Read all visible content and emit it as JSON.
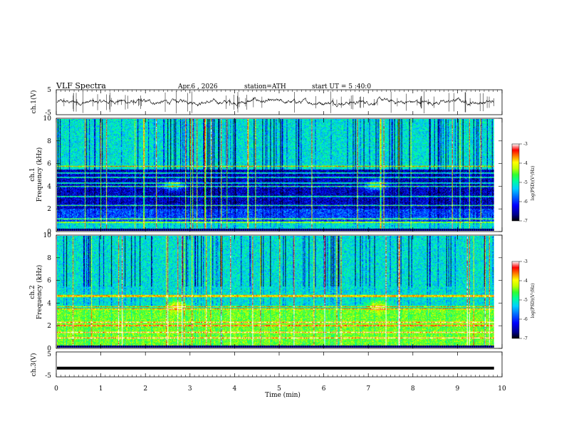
{
  "header": {
    "title": "VLF  Spectra",
    "date": "Apr.6  , 2026",
    "station": "station=ATH",
    "start": "start  UT  =   5  :40:0"
  },
  "chart_data": {
    "type": "heatmap",
    "x_axis": {
      "label": "Time  (min)",
      "range": [
        0,
        10
      ],
      "ticks": [
        "0",
        "1",
        "2",
        "3",
        "4",
        "5",
        "6",
        "7",
        "8",
        "9",
        "10"
      ],
      "data_end": 9.82
    },
    "panels": [
      {
        "id": "ch1-waveform",
        "type": "line",
        "ylabel": "ch.1(V)",
        "ylim": [
          -5,
          5
        ],
        "yticks": [
          "5",
          "-5"
        ],
        "baseline": 0,
        "bursts": [
          1.4,
          2.95,
          4.5,
          7.3,
          9.0
        ]
      },
      {
        "id": "ch1-spectrogram",
        "type": "heatmap",
        "ylabel": "ch.1\nFrequency  (kHz)",
        "ylim": [
          0,
          10
        ],
        "yticks": [
          "0",
          "2",
          "4",
          "6",
          "8",
          "10"
        ],
        "background_bands_khz": [
          [
            0,
            0.8,
            "cyan"
          ],
          [
            0.8,
            2.0,
            "blue"
          ],
          [
            2.0,
            5.5,
            "darkblue"
          ],
          [
            5.5,
            10,
            "cyan"
          ]
        ],
        "tones_khz": [
          0.8,
          1.1,
          2.3,
          3.1,
          4.0,
          4.3,
          4.8,
          5.2,
          5.8
        ],
        "features": [
          {
            "t": 2.6,
            "f": 4.1
          },
          {
            "t": 7.15,
            "f": 4.1
          }
        ]
      },
      {
        "id": "ch2-spectrogram",
        "type": "heatmap",
        "ylabel": "ch.2\nFrequency  (kHz)",
        "ylim": [
          0,
          10
        ],
        "yticks": [
          "0",
          "2",
          "4",
          "6",
          "8",
          "10"
        ],
        "background_bands_khz": [
          [
            0,
            3.5,
            "green"
          ],
          [
            3.5,
            4.6,
            "cyan"
          ],
          [
            4.6,
            10,
            "cyan"
          ]
        ],
        "tones_khz": [
          0.9,
          1.4,
          2.0,
          2.3,
          3.5,
          3.7,
          4.6,
          4.7
        ],
        "features": [
          {
            "t": 2.7,
            "f": 3.8
          },
          {
            "t": 7.2,
            "f": 3.8
          }
        ]
      },
      {
        "id": "ch3-waveform",
        "type": "line",
        "ylabel": "ch.3(V)",
        "ylim": [
          -5,
          5
        ],
        "yticks": [
          "5",
          "-5"
        ],
        "baseline": -1.5
      }
    ],
    "colorbars": [
      {
        "id": "cb1",
        "label": "log(PSD)(V²/Hz)",
        "ticks": [
          "-3",
          "-4",
          "-5",
          "-6",
          "-7"
        ],
        "range": [
          -7,
          -3
        ]
      },
      {
        "id": "cb2",
        "label": "log(PSD)(V²/Hz)",
        "ticks": [
          "-3",
          "-4",
          "-5",
          "-6",
          "-7"
        ],
        "range": [
          -7,
          -3
        ]
      }
    ],
    "colormap": [
      "#000000",
      "#00008b",
      "#0000ff",
      "#0070ff",
      "#00d0ff",
      "#00ff9a",
      "#30ff30",
      "#c0ff00",
      "#ffff00",
      "#ff8000",
      "#ff0000",
      "#ffffff"
    ]
  }
}
